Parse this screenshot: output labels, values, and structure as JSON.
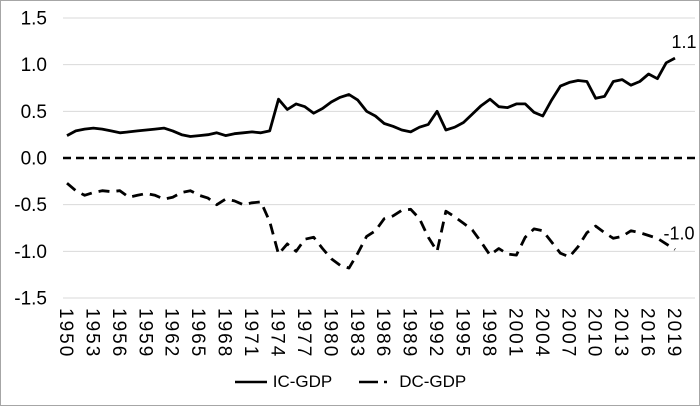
{
  "chart_data": {
    "type": "line",
    "title": "",
    "xlabel": "",
    "ylabel": "",
    "x_start": 1950,
    "x_end": 2019,
    "x_tick_labels": [
      "1950",
      "1953",
      "1956",
      "1959",
      "1962",
      "1965",
      "1968",
      "1971",
      "1974",
      "1977",
      "1980",
      "1983",
      "1986",
      "1989",
      "1992",
      "1995",
      "1998",
      "2001",
      "2004",
      "2007",
      "2010",
      "2013",
      "2016",
      "2019"
    ],
    "y_ticks": [
      "1.5",
      "1.0",
      "0.5",
      "0.0",
      "-0.5",
      "-1.0",
      "-1.5"
    ],
    "ylim": [
      -1.5,
      1.5
    ],
    "grid": "horizontal",
    "gridline_color": "#d9d9d9",
    "zero_line": {
      "style": "dashed",
      "color": "#000000"
    },
    "legend_position": "bottom",
    "series": [
      {
        "name": "IC-GDP",
        "line_style": "solid",
        "color": "#000000",
        "end_label": "1.1",
        "values": [
          0.24,
          0.29,
          0.31,
          0.32,
          0.31,
          0.29,
          0.27,
          0.28,
          0.29,
          0.3,
          0.31,
          0.32,
          0.29,
          0.25,
          0.23,
          0.24,
          0.25,
          0.27,
          0.24,
          0.26,
          0.27,
          0.28,
          0.27,
          0.29,
          0.63,
          0.52,
          0.58,
          0.55,
          0.48,
          0.53,
          0.6,
          0.65,
          0.68,
          0.62,
          0.5,
          0.45,
          0.37,
          0.34,
          0.3,
          0.28,
          0.33,
          0.36,
          0.5,
          0.3,
          0.33,
          0.38,
          0.47,
          0.56,
          0.63,
          0.55,
          0.54,
          0.58,
          0.58,
          0.49,
          0.45,
          0.62,
          0.77,
          0.81,
          0.83,
          0.82,
          0.64,
          0.66,
          0.82,
          0.84,
          0.78,
          0.82,
          0.9,
          0.85,
          1.02,
          1.07
        ]
      },
      {
        "name": "DC-GDP",
        "line_style": "dashed",
        "color": "#000000",
        "end_label": "-1.0",
        "values": [
          -0.27,
          -0.35,
          -0.4,
          -0.37,
          -0.35,
          -0.36,
          -0.35,
          -0.42,
          -0.4,
          -0.38,
          -0.4,
          -0.44,
          -0.42,
          -0.37,
          -0.35,
          -0.4,
          -0.43,
          -0.5,
          -0.44,
          -0.46,
          -0.5,
          -0.48,
          -0.47,
          -0.68,
          -1.03,
          -0.92,
          -1.0,
          -0.87,
          -0.85,
          -0.97,
          -1.08,
          -1.15,
          -1.18,
          -1.02,
          -0.84,
          -0.78,
          -0.65,
          -0.62,
          -0.56,
          -0.55,
          -0.65,
          -0.85,
          -1.0,
          -0.57,
          -0.63,
          -0.7,
          -0.77,
          -0.9,
          -1.04,
          -0.97,
          -1.03,
          -1.04,
          -0.85,
          -0.76,
          -0.78,
          -0.9,
          -1.02,
          -1.06,
          -0.95,
          -0.8,
          -0.73,
          -0.8,
          -0.86,
          -0.84,
          -0.78,
          -0.8,
          -0.83,
          -0.86,
          -0.92,
          -0.98
        ]
      }
    ]
  },
  "legend": {
    "items": [
      {
        "label": "IC-GDP",
        "marker": "solid-line"
      },
      {
        "label": "DC-GDP",
        "marker": "dash-dot-line"
      }
    ]
  }
}
